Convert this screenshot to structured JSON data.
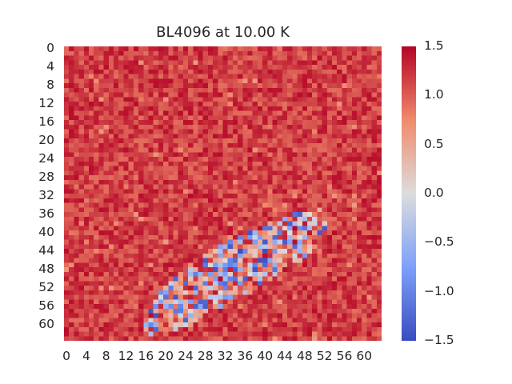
{
  "chart_data": {
    "type": "heatmap",
    "title": "BL4096 at 10.00 K",
    "xlabel": "",
    "ylabel": "",
    "grid_rows": 64,
    "grid_cols": 64,
    "x_ticks": [
      "0",
      "4",
      "8",
      "12",
      "16",
      "20",
      "24",
      "28",
      "32",
      "36",
      "40",
      "44",
      "48",
      "52",
      "56",
      "60"
    ],
    "y_ticks": [
      "0",
      "4",
      "8",
      "12",
      "16",
      "20",
      "24",
      "28",
      "32",
      "36",
      "40",
      "44",
      "48",
      "52",
      "56",
      "60"
    ],
    "colorbar": {
      "vmin": -1.5,
      "vmax": 1.5,
      "ticks": [
        "1.5",
        "1.0",
        "0.5",
        "0.0",
        "−0.5",
        "−1.0",
        "−1.5"
      ],
      "colormap": "coolwarm",
      "placement": "right"
    },
    "background_value": 1.45,
    "low_value_region": {
      "description_values": "disordered region with values between -1.5 and 1.5",
      "polygon_data_coords": [
        [
          16,
          60
        ],
        [
          20,
          52
        ],
        [
          28,
          45
        ],
        [
          38,
          40
        ],
        [
          44,
          37
        ],
        [
          52,
          35
        ],
        [
          53,
          39
        ],
        [
          50,
          45
        ],
        [
          44,
          49
        ],
        [
          36,
          54
        ],
        [
          28,
          59
        ],
        [
          24,
          62
        ],
        [
          16,
          63
        ]
      ],
      "min_value": -1.5,
      "max_value": 1.5
    }
  }
}
